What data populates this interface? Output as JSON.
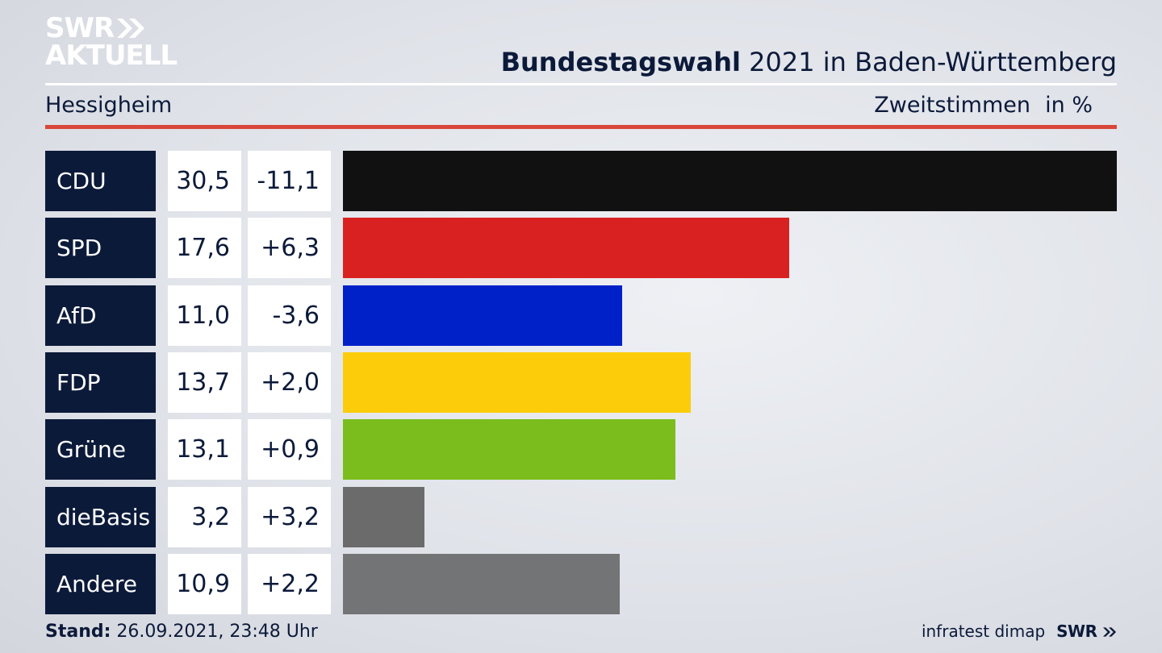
{
  "logo": {
    "line1": "SWR",
    "line2": "AKTUELL"
  },
  "header": {
    "title_bold": "Bundestagswahl",
    "title_rest": " 2021 in Baden-Württemberg",
    "location": "Hessigheim",
    "measure": "Zweitstimmen",
    "unit": "in %"
  },
  "chart_data": {
    "type": "bar",
    "orientation": "horizontal",
    "categories": [
      "CDU",
      "SPD",
      "AfD",
      "FDP",
      "Grüne",
      "dieBasis",
      "Andere"
    ],
    "values": [
      30.5,
      17.6,
      11.0,
      13.7,
      13.1,
      3.2,
      10.9
    ],
    "value_labels": [
      "30,5",
      "17,6",
      "11,0",
      "13,7",
      "13,1",
      "3,2",
      "10,9"
    ],
    "changes": [
      "-11,1",
      "+6,3",
      "-3,6",
      "+2,0",
      "+0,9",
      "+3,2",
      "+2,2"
    ],
    "colors": [
      "#111111",
      "#d92121",
      "#0021c8",
      "#fccc0a",
      "#7abd1c",
      "#6b6b6b",
      "#737476"
    ],
    "xlim": [
      0,
      30.5
    ],
    "grid": false
  },
  "footer": {
    "stand_label": "Stand:",
    "stand_value": " 26.09.2021, 23:48 Uhr",
    "source": "infratest dimap",
    "brand": "SWR"
  }
}
